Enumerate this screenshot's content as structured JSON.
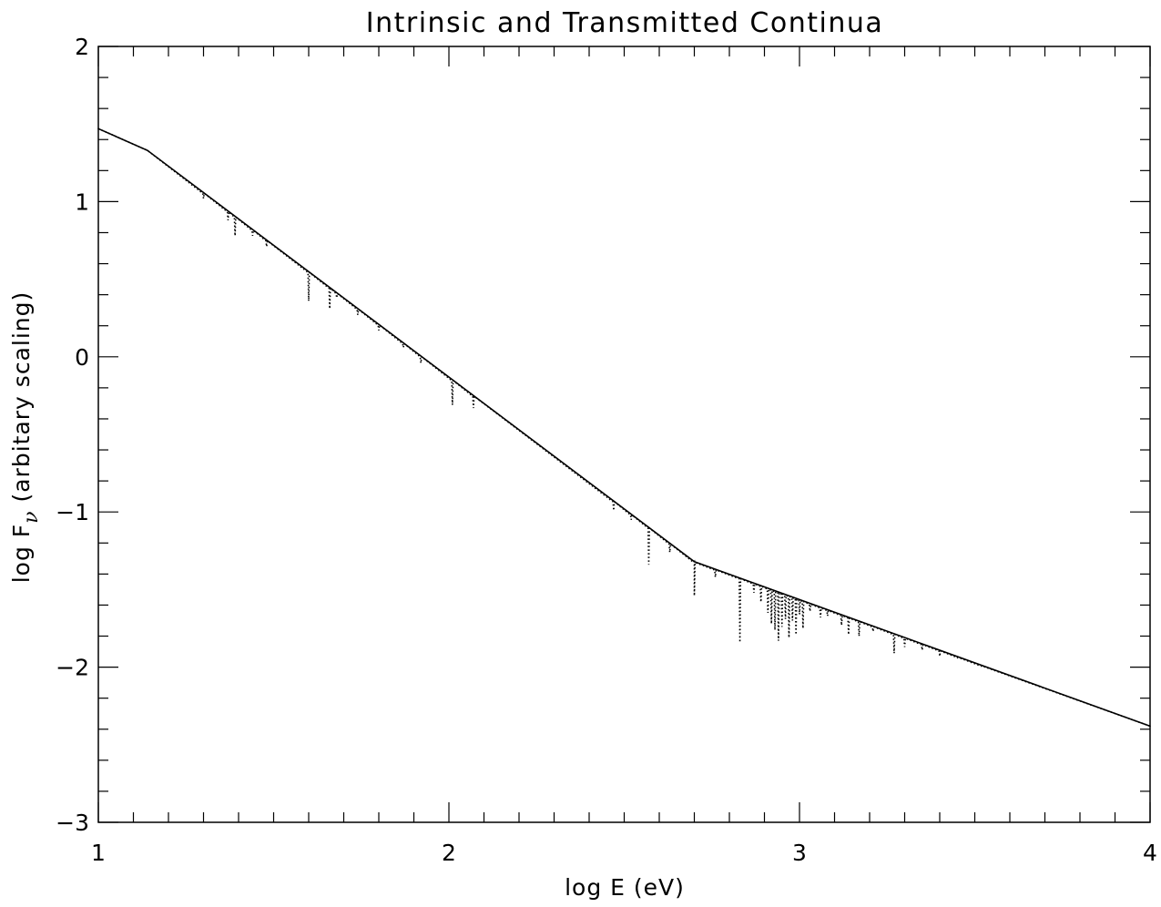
{
  "chart_data": {
    "type": "line",
    "title": "Intrinsic and Transmitted Continua",
    "xlabel": "log E (eV)",
    "ylabel_prefix": "log F",
    "ylabel_subscript": "ν",
    "ylabel_suffix": " (arbitary scaling)",
    "xlim": [
      1,
      4
    ],
    "ylim": [
      -3,
      2
    ],
    "x_ticks": [
      1,
      2,
      3,
      4
    ],
    "x_tick_labels": [
      "1",
      "2",
      "3",
      "4"
    ],
    "x_minor_step": 0.1,
    "y_ticks": [
      -3,
      -2,
      -1,
      0,
      1,
      2
    ],
    "y_tick_labels": [
      "−3",
      "−2",
      "−1",
      "0",
      "1",
      "2"
    ],
    "y_minor_step": 0.2,
    "grid": false,
    "series": [
      {
        "style": "solid",
        "x": [
          1.0,
          1.14,
          2.7,
          4.0
        ],
        "y": [
          1.47,
          1.33,
          -1.32,
          -2.38
        ]
      },
      {
        "style": "dotted",
        "x": [
          1.0,
          1.14,
          2.7,
          4.0
        ],
        "y": [
          1.47,
          1.33,
          -1.32,
          -2.38
        ],
        "absorption_lines": [
          {
            "x": 1.3,
            "y": 1.02
          },
          {
            "x": 1.37,
            "y": 0.88
          },
          {
            "x": 1.39,
            "y": 0.78
          },
          {
            "x": 1.44,
            "y": 0.78
          },
          {
            "x": 1.48,
            "y": 0.71
          },
          {
            "x": 1.6,
            "y": 0.36
          },
          {
            "x": 1.66,
            "y": 0.31
          },
          {
            "x": 1.68,
            "y": 0.38
          },
          {
            "x": 1.74,
            "y": 0.27
          },
          {
            "x": 1.8,
            "y": 0.17
          },
          {
            "x": 1.87,
            "y": 0.06
          },
          {
            "x": 1.92,
            "y": -0.04
          },
          {
            "x": 2.01,
            "y": -0.31
          },
          {
            "x": 2.07,
            "y": -0.33
          },
          {
            "x": 2.47,
            "y": -0.99
          },
          {
            "x": 2.52,
            "y": -1.05
          },
          {
            "x": 2.57,
            "y": -1.34
          },
          {
            "x": 2.63,
            "y": -1.26
          },
          {
            "x": 2.7,
            "y": -1.54
          },
          {
            "x": 2.76,
            "y": -1.42
          },
          {
            "x": 2.83,
            "y": -1.84
          },
          {
            "x": 2.87,
            "y": -1.52
          },
          {
            "x": 2.89,
            "y": -1.58
          },
          {
            "x": 2.91,
            "y": -1.65
          },
          {
            "x": 2.92,
            "y": -1.72
          },
          {
            "x": 2.93,
            "y": -1.76
          },
          {
            "x": 2.94,
            "y": -1.83
          },
          {
            "x": 2.95,
            "y": -1.74
          },
          {
            "x": 2.96,
            "y": -1.69
          },
          {
            "x": 2.97,
            "y": -1.81
          },
          {
            "x": 2.98,
            "y": -1.7
          },
          {
            "x": 2.99,
            "y": -1.79
          },
          {
            "x": 3.0,
            "y": -1.66
          },
          {
            "x": 3.01,
            "y": -1.75
          },
          {
            "x": 3.03,
            "y": -1.64
          },
          {
            "x": 3.06,
            "y": -1.68
          },
          {
            "x": 3.08,
            "y": -1.67
          },
          {
            "x": 3.12,
            "y": -1.73
          },
          {
            "x": 3.14,
            "y": -1.79
          },
          {
            "x": 3.17,
            "y": -1.8
          },
          {
            "x": 3.21,
            "y": -1.77
          },
          {
            "x": 3.27,
            "y": -1.91
          },
          {
            "x": 3.3,
            "y": -1.87
          },
          {
            "x": 3.35,
            "y": -1.89
          },
          {
            "x": 3.4,
            "y": -1.93
          },
          {
            "x": 3.45,
            "y": -1.94
          },
          {
            "x": 3.52,
            "y": -1.99
          }
        ]
      }
    ]
  }
}
